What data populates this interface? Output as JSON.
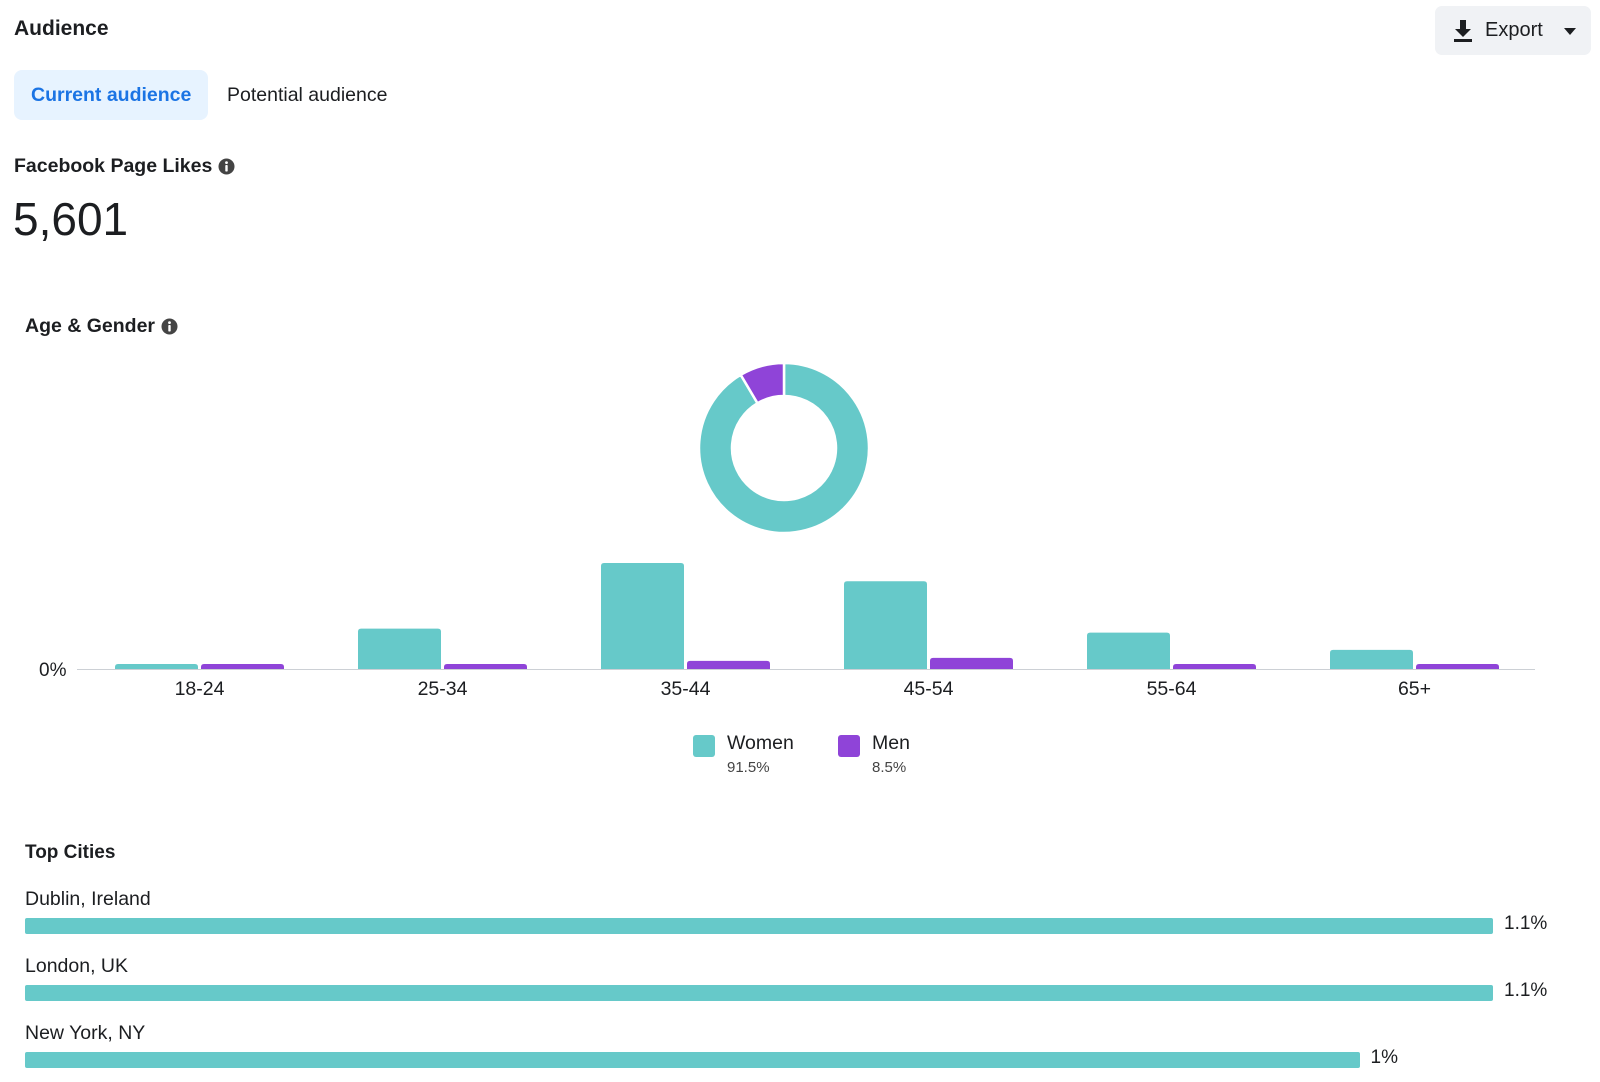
{
  "header": {
    "title": "Audience",
    "export_label": "Export"
  },
  "tabs": [
    {
      "label": "Current audience",
      "active": true
    },
    {
      "label": "Potential audience",
      "active": false
    }
  ],
  "likes": {
    "title": "Facebook Page Likes",
    "value": "5,601"
  },
  "age_gender": {
    "title": "Age & Gender",
    "legend": [
      {
        "name": "Women",
        "pct": "91.5%",
        "color": "#66c9c9"
      },
      {
        "name": "Men",
        "pct": "8.5%",
        "color": "#8f44d8"
      }
    ]
  },
  "chart_data": [
    {
      "type": "pie",
      "labels": [
        "Women",
        "Men"
      ],
      "values": [
        91.5,
        8.5
      ],
      "colors": [
        "#66c9c9",
        "#8f44d8"
      ],
      "title": ""
    },
    {
      "type": "bar",
      "categories": [
        "18-24",
        "25-34",
        "35-44",
        "45-54",
        "55-64",
        "65+"
      ],
      "series": [
        {
          "name": "Women",
          "values": [
            0.5,
            4.0,
            10.5,
            8.7,
            3.6,
            1.9
          ],
          "color": "#66c9c9"
        },
        {
          "name": "Men",
          "values": [
            0.5,
            0.5,
            0.8,
            1.1,
            0.5,
            0.5
          ],
          "color": "#8f44d8"
        }
      ],
      "y_tick_label": "0%",
      "ylim": [
        0,
        11
      ],
      "grid": false,
      "legend_position": "bottom-center"
    }
  ],
  "cities": {
    "title": "Top Cities",
    "items": [
      {
        "name": "Dublin, Ireland",
        "value": 1.1,
        "label": "1.1%"
      },
      {
        "name": "London, UK",
        "value": 1.1,
        "label": "1.1%"
      },
      {
        "name": "New York, NY",
        "value": 1.0,
        "label": "1%"
      }
    ]
  }
}
